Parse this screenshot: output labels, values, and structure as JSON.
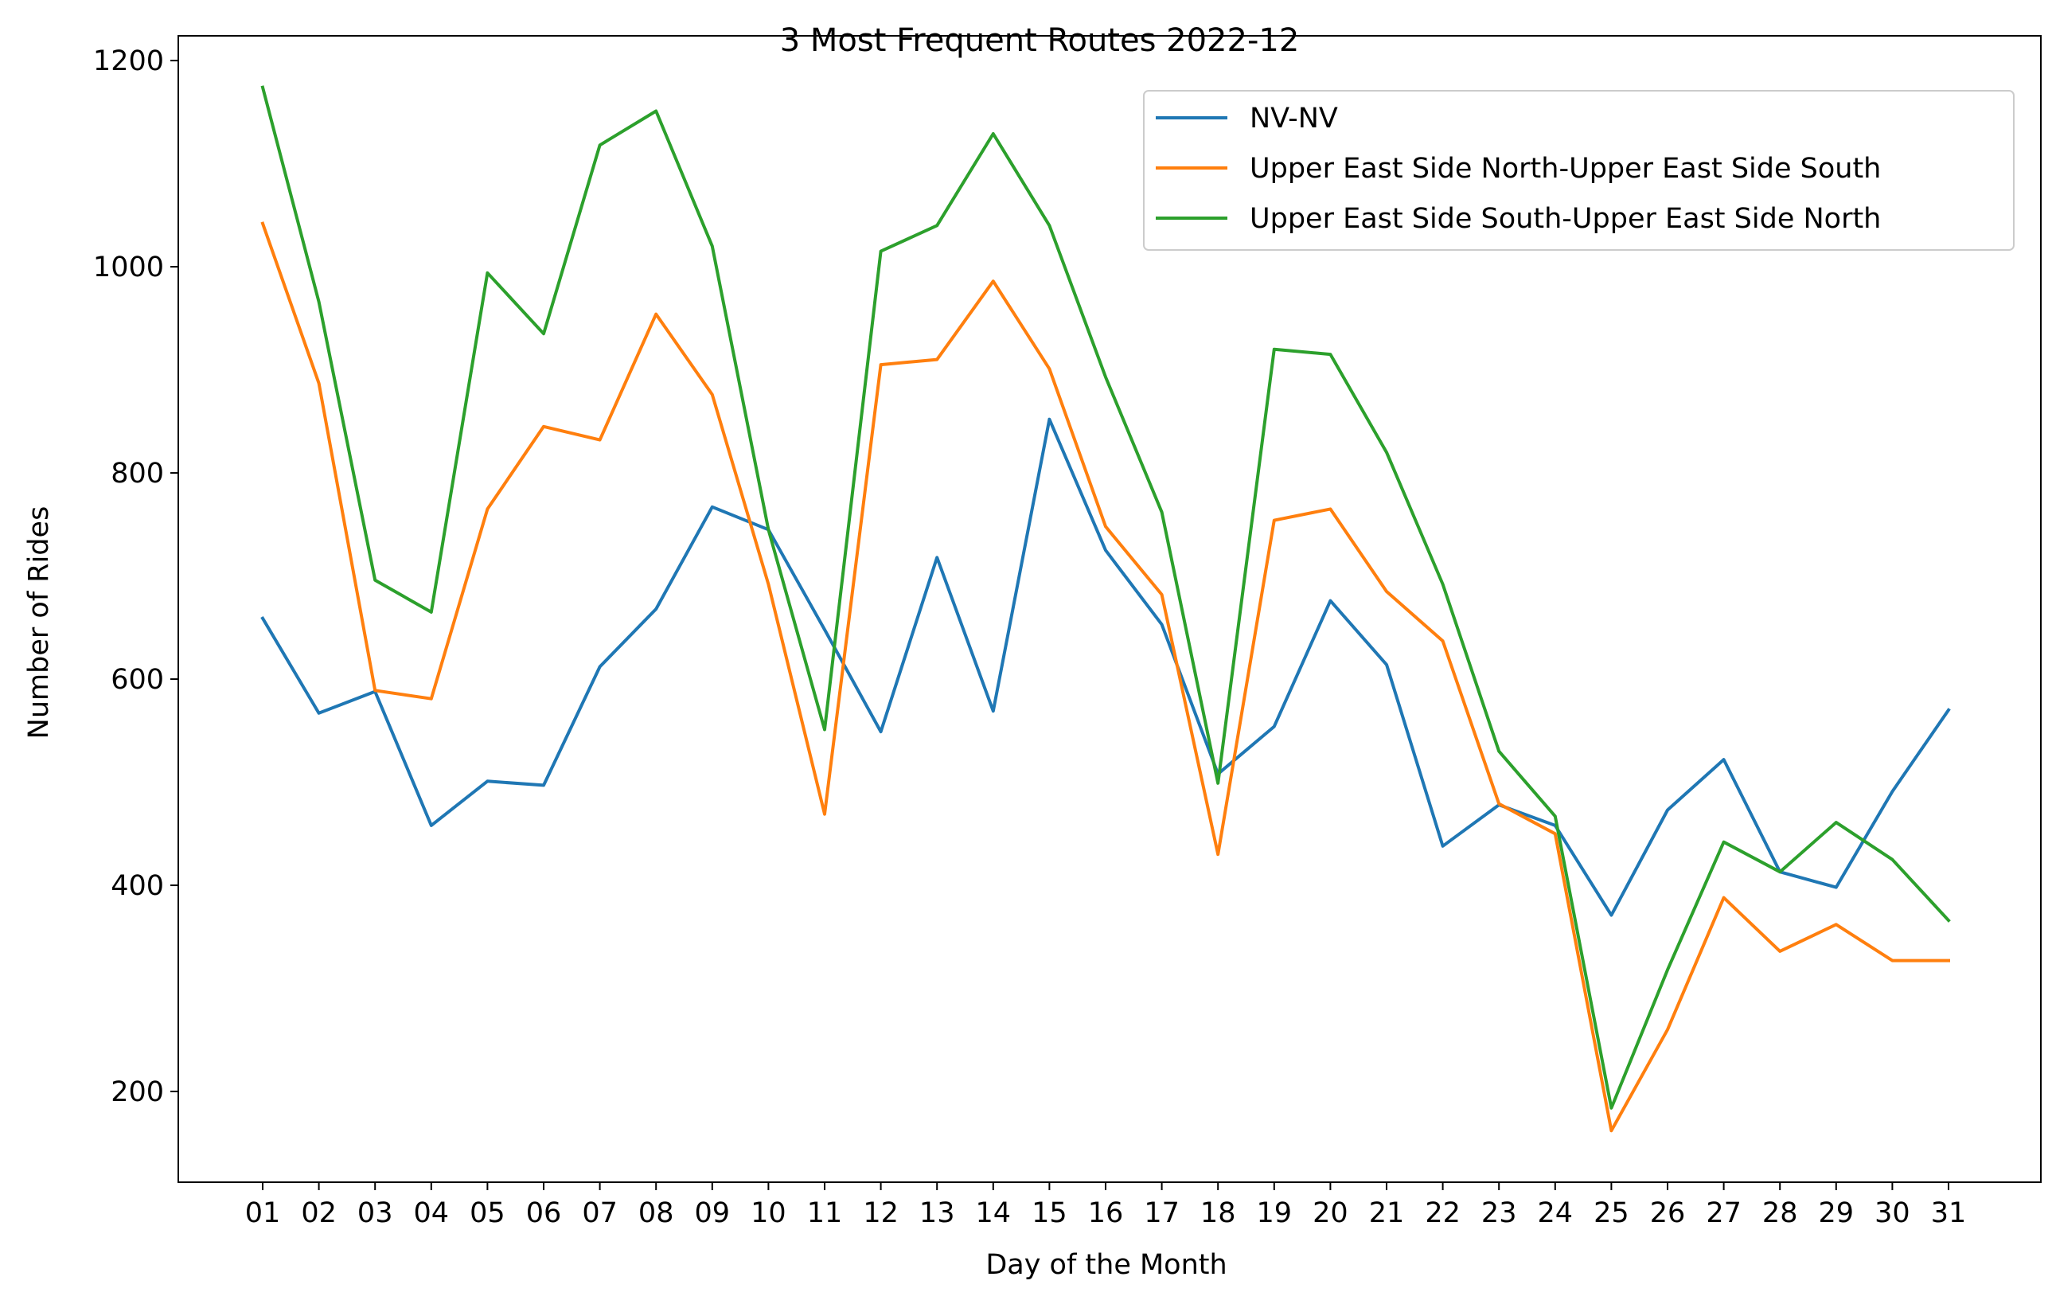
{
  "chart_data": {
    "type": "line",
    "title": "3 Most Frequent Routes 2022-12",
    "xlabel": "Day of the Month",
    "ylabel": "Number of Rides",
    "categories": [
      "01",
      "02",
      "03",
      "04",
      "05",
      "06",
      "07",
      "08",
      "09",
      "10",
      "11",
      "12",
      "13",
      "14",
      "15",
      "16",
      "17",
      "18",
      "19",
      "20",
      "21",
      "22",
      "23",
      "24",
      "25",
      "26",
      "27",
      "28",
      "29",
      "30",
      "31"
    ],
    "ylim": [
      112,
      1224
    ],
    "yticks": [
      200,
      400,
      600,
      800,
      1000,
      1200
    ],
    "grid": false,
    "legend_position": "top-right",
    "series": [
      {
        "name": "NV-NV",
        "color": "#1f77b4",
        "values": [
          659,
          567,
          588,
          458,
          501,
          497,
          612,
          668,
          767,
          745,
          648,
          549,
          718,
          569,
          852,
          725,
          653,
          508,
          554,
          676,
          614,
          438,
          478,
          458,
          371,
          473,
          522,
          413,
          398,
          491,
          570
        ]
      },
      {
        "name": "Upper East Side North-Upper East Side South",
        "color": "#ff7f0e",
        "values": [
          1042,
          887,
          589,
          581,
          765,
          845,
          832,
          954,
          876,
          692,
          469,
          905,
          910,
          986,
          901,
          748,
          682,
          430,
          754,
          765,
          685,
          637,
          479,
          450,
          162,
          260,
          388,
          336,
          362,
          327,
          327
        ]
      },
      {
        "name": "Upper East Side South-Upper East Side North",
        "color": "#2ca02c",
        "values": [
          1174,
          966,
          696,
          665,
          994,
          935,
          1118,
          1151,
          1020,
          745,
          551,
          1015,
          1040,
          1129,
          1040,
          893,
          762,
          499,
          920,
          915,
          820,
          692,
          530,
          467,
          184,
          318,
          442,
          413,
          461,
          425,
          366
        ]
      }
    ]
  }
}
